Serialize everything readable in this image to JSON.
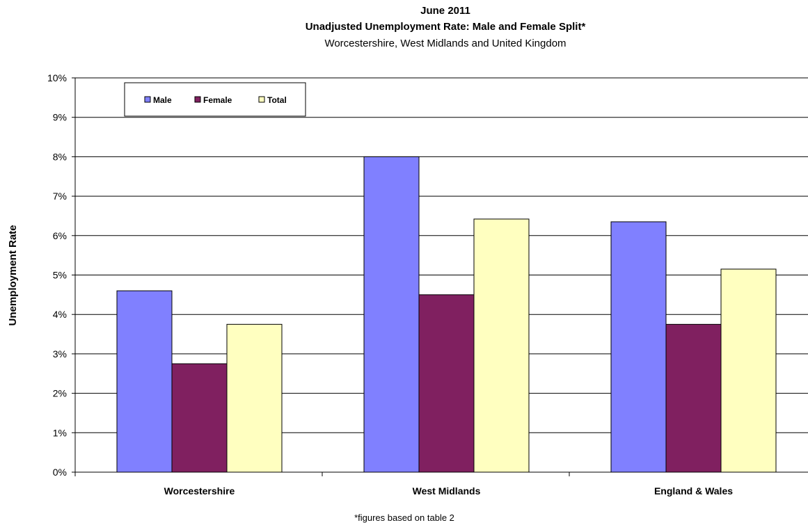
{
  "chart_data": {
    "type": "bar",
    "title": "June 2011",
    "subtitle": "Unadjusted Unemployment Rate: Male and Female Split*",
    "subtitle2": "Worcestershire, West Midlands and United Kingdom",
    "xlabel": "",
    "ylabel": "Unemployment Rate",
    "ylim": [
      0,
      10
    ],
    "y_ticks": [
      "0%",
      "1%",
      "2%",
      "3%",
      "4%",
      "5%",
      "6%",
      "7%",
      "8%",
      "9%",
      "10%"
    ],
    "grid": true,
    "legend_position": "top-left",
    "categories": [
      "Worcestershire",
      "West Midlands",
      "England & Wales"
    ],
    "series": [
      {
        "name": "Male",
        "color": "#8080ff",
        "values": [
          4.6,
          8.0,
          6.35
        ]
      },
      {
        "name": "Female",
        "color": "#802060",
        "values": [
          2.75,
          4.5,
          3.75
        ]
      },
      {
        "name": "Total",
        "color": "#ffffc0",
        "values": [
          3.75,
          6.42,
          5.15
        ]
      }
    ],
    "footnote": "*figures based on table 2"
  }
}
